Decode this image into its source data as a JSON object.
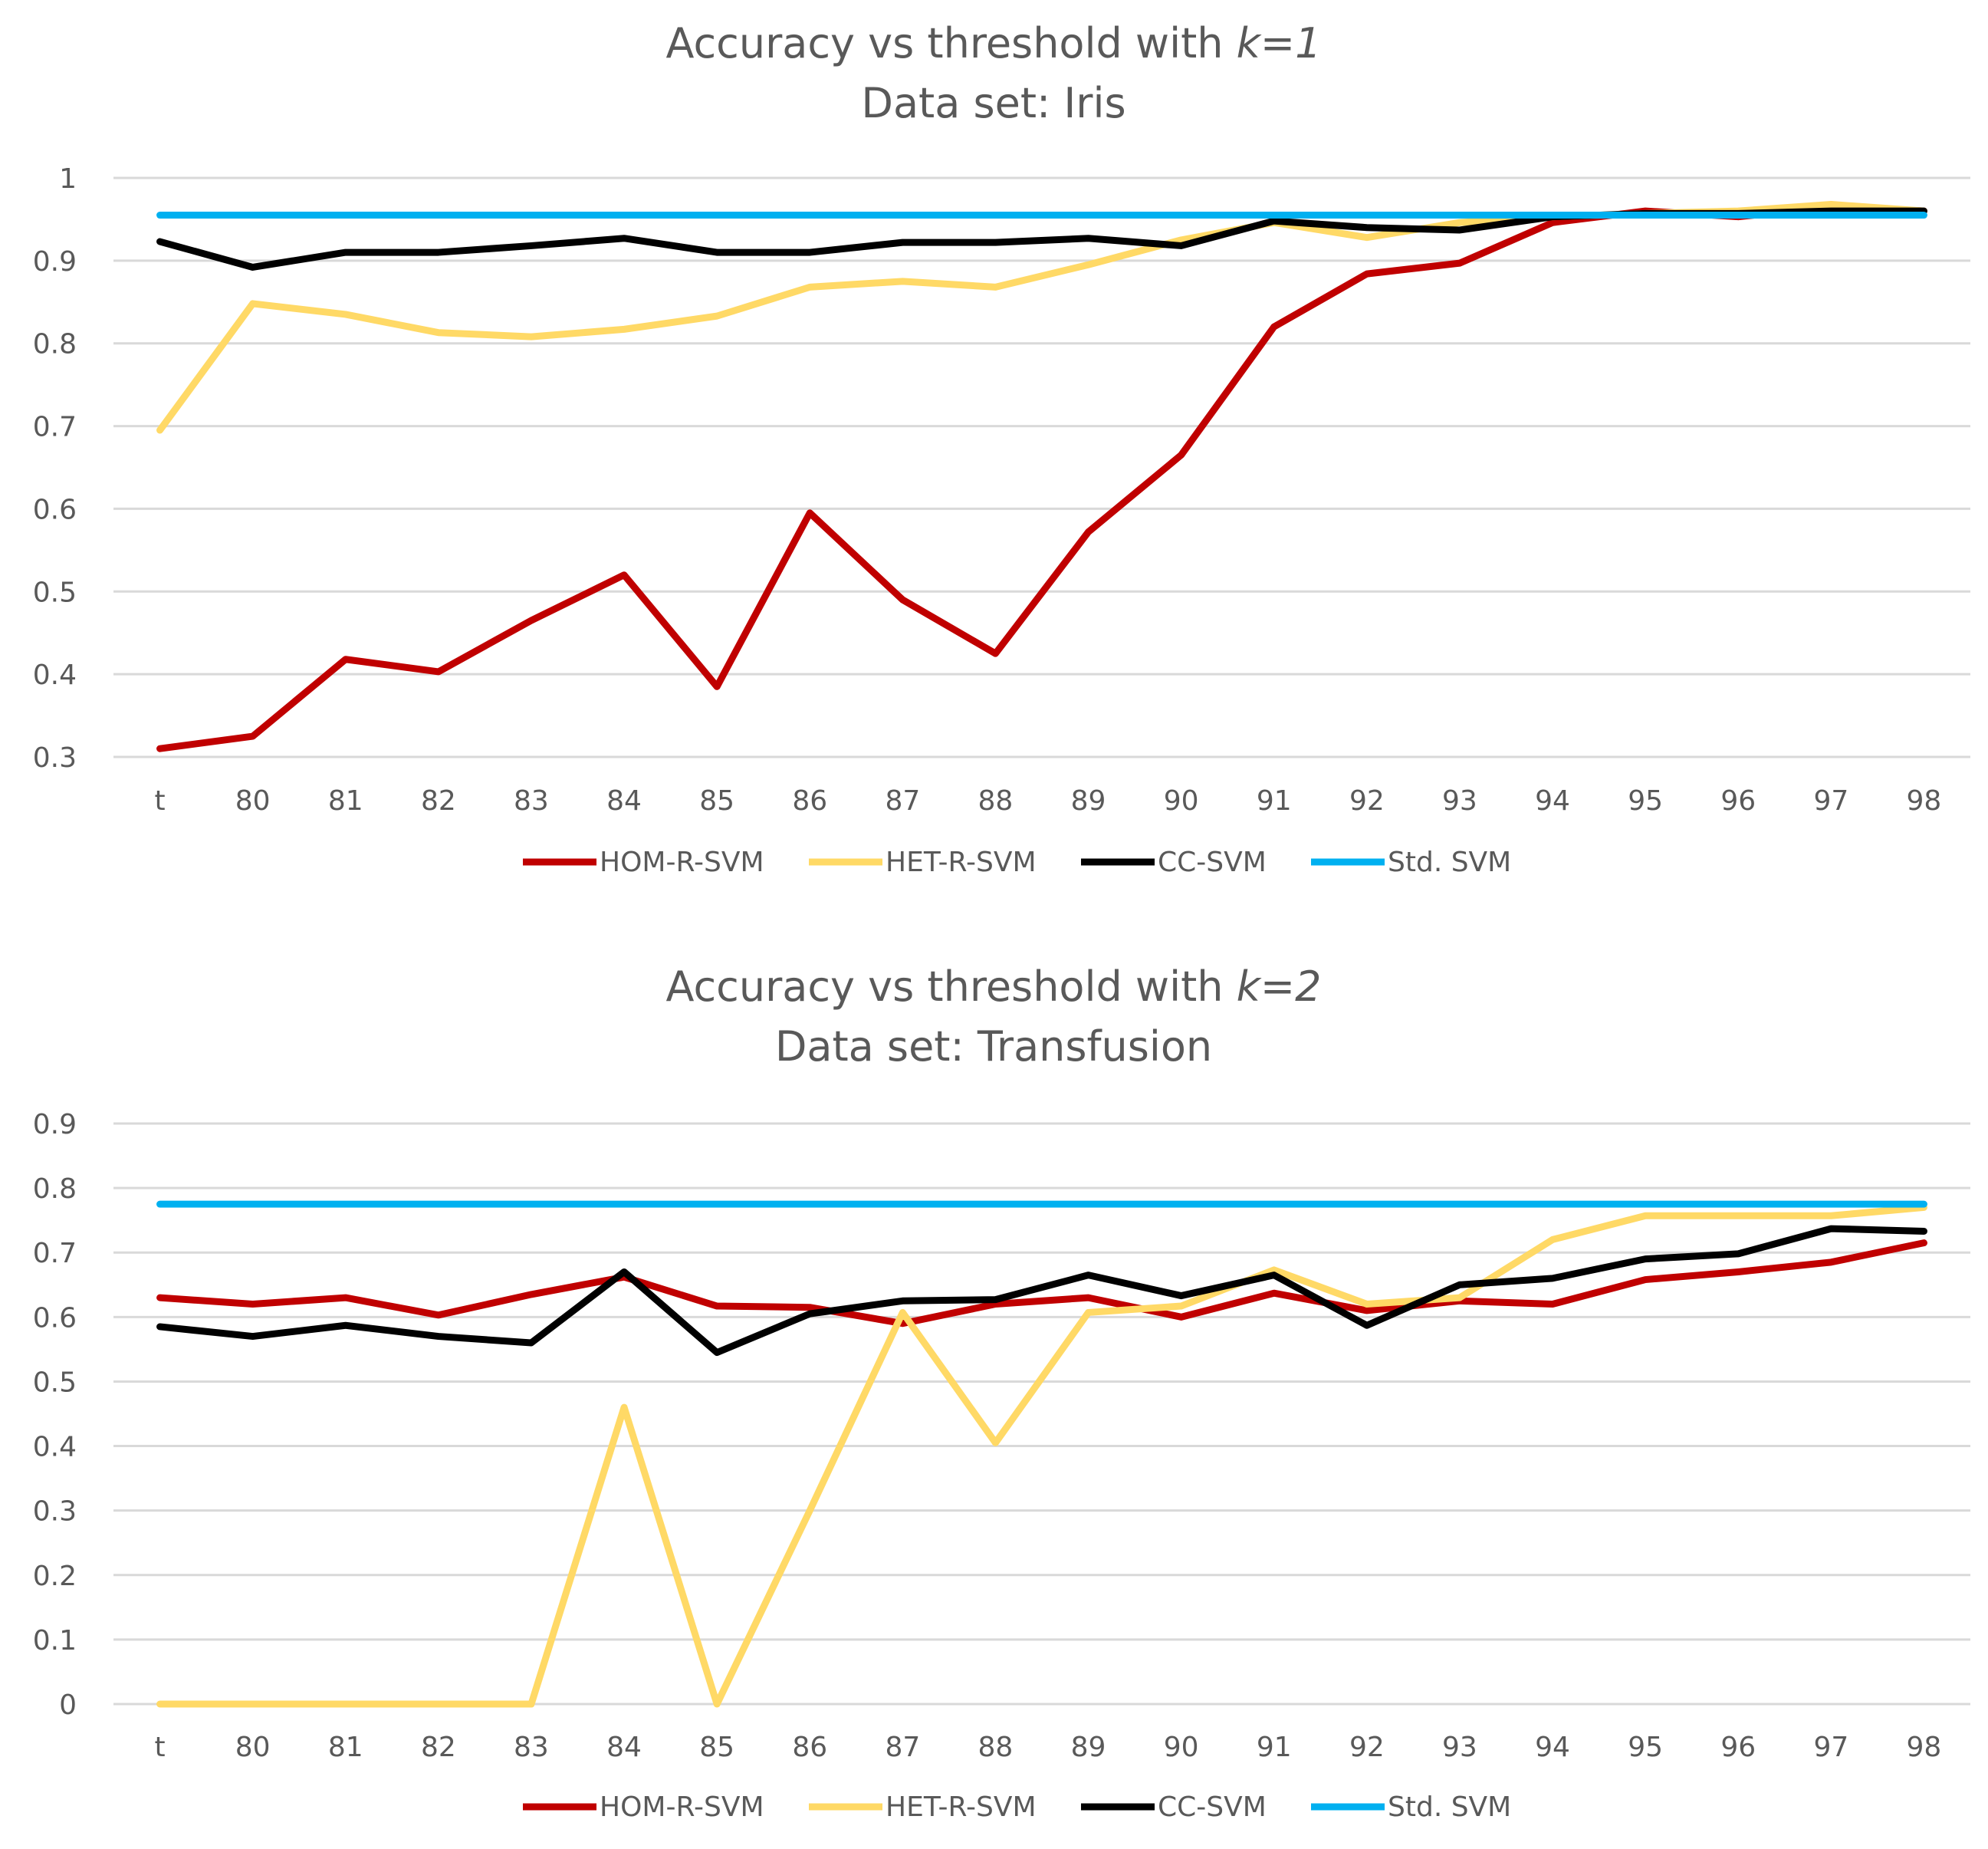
{
  "chart_data": [
    {
      "type": "line",
      "title": "Accuracy vs threshold with ",
      "title_k": "k=1",
      "subtitle": "Data set: Iris",
      "categories": [
        "t",
        "80",
        "81",
        "82",
        "83",
        "84",
        "85",
        "86",
        "87",
        "88",
        "89",
        "90",
        "91",
        "92",
        "93",
        "94",
        "95",
        "96",
        "97",
        "98"
      ],
      "ylim": [
        0.3,
        1
      ],
      "yticks": [
        "1",
        "0.9",
        "0.8",
        "0.7",
        "0.6",
        "0.5",
        "0.4",
        "0.3"
      ],
      "ytick_values": [
        1,
        0.9,
        0.8,
        0.7,
        0.6,
        0.5,
        0.4,
        0.3
      ],
      "grid": true,
      "legend_position": "bottom",
      "series": [
        {
          "name": "HOM-R-SVM",
          "color": "#c00000",
          "values": [
            0.31,
            0.325,
            0.418,
            0.403,
            0.465,
            0.52,
            0.385,
            0.595,
            0.49,
            0.425,
            0.572,
            0.665,
            0.82,
            0.884,
            0.897,
            0.946,
            0.96,
            0.953,
            0.965,
            0.96
          ]
        },
        {
          "name": "HET-R-SVM",
          "color": "#ffd966",
          "values": [
            0.695,
            0.848,
            0.835,
            0.813,
            0.808,
            0.817,
            0.833,
            0.868,
            0.875,
            0.868,
            0.895,
            0.925,
            0.946,
            0.928,
            0.946,
            0.953,
            0.957,
            0.96,
            0.968,
            0.96
          ]
        },
        {
          "name": "CC-SVM",
          "color": "#000000",
          "values": [
            0.923,
            0.892,
            0.91,
            0.91,
            0.918,
            0.927,
            0.91,
            0.91,
            0.922,
            0.922,
            0.927,
            0.918,
            0.948,
            0.94,
            0.937,
            0.953,
            0.957,
            0.957,
            0.96,
            0.96
          ]
        },
        {
          "name": "Std. SVM",
          "color": "#00b0f0",
          "values": [
            0.955,
            0.955,
            0.955,
            0.955,
            0.955,
            0.955,
            0.955,
            0.955,
            0.955,
            0.955,
            0.955,
            0.955,
            0.955,
            0.955,
            0.955,
            0.955,
            0.955,
            0.955,
            0.955,
            0.955
          ]
        }
      ]
    },
    {
      "type": "line",
      "title": "Accuracy vs threshold with ",
      "title_k": "k=2",
      "subtitle": "Data set: Transfusion",
      "categories": [
        "t",
        "80",
        "81",
        "82",
        "83",
        "84",
        "85",
        "86",
        "87",
        "88",
        "89",
        "90",
        "91",
        "92",
        "93",
        "94",
        "95",
        "96",
        "97",
        "98"
      ],
      "ylim": [
        0,
        0.9
      ],
      "yticks": [
        "0.9",
        "0.8",
        "0.7",
        "0.6",
        "0.5",
        "0.4",
        "0.3",
        "0.2",
        "0.1",
        "0"
      ],
      "ytick_values": [
        0.9,
        0.8,
        0.7,
        0.6,
        0.5,
        0.4,
        0.3,
        0.2,
        0.1,
        0
      ],
      "grid": true,
      "legend_position": "bottom",
      "series": [
        {
          "name": "HOM-R-SVM",
          "color": "#c00000",
          "values": [
            0.63,
            0.62,
            0.63,
            0.603,
            0.635,
            0.662,
            0.617,
            0.615,
            0.59,
            0.62,
            0.63,
            0.6,
            0.637,
            0.61,
            0.625,
            0.62,
            0.658,
            0.67,
            0.685,
            0.715
          ]
        },
        {
          "name": "HET-R-SVM",
          "color": "#ffd966",
          "values": [
            0,
            0,
            0,
            0,
            0,
            0.46,
            0,
            0.3,
            0.607,
            0.405,
            0.607,
            0.617,
            0.673,
            0.62,
            0.63,
            0.72,
            0.757,
            0.757,
            0.757,
            0.77
          ]
        },
        {
          "name": "CC-SVM",
          "color": "#000000",
          "values": [
            0.585,
            0.57,
            0.587,
            0.57,
            0.56,
            0.67,
            0.545,
            0.605,
            0.625,
            0.627,
            0.665,
            0.633,
            0.665,
            0.587,
            0.65,
            0.66,
            0.69,
            0.698,
            0.737,
            0.733
          ]
        },
        {
          "name": "Std. SVM",
          "color": "#00b0f0",
          "values": [
            0.775,
            0.775,
            0.775,
            0.775,
            0.775,
            0.775,
            0.775,
            0.775,
            0.775,
            0.775,
            0.775,
            0.775,
            0.775,
            0.775,
            0.775,
            0.775,
            0.775,
            0.775,
            0.775,
            0.775
          ]
        }
      ]
    }
  ]
}
